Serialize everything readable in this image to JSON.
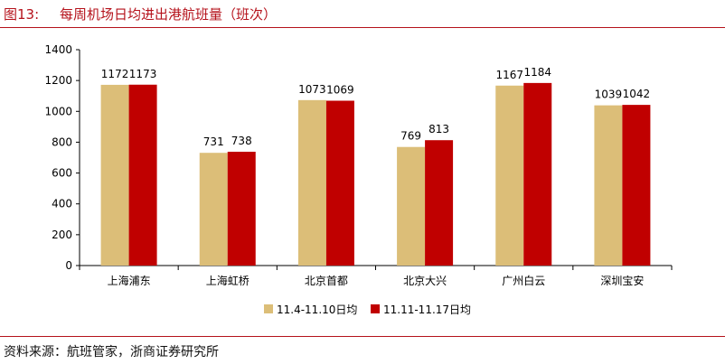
{
  "header": {
    "figure_label": "图13:",
    "title": "每周机场日均进出港航班量（班次）"
  },
  "footer": {
    "source": "资料来源：航班管家，浙商证券研究所"
  },
  "colors": {
    "accent": "#b5121b",
    "series_1": "#dcbe78",
    "series_2": "#c00000"
  },
  "chart_data": {
    "type": "bar",
    "title": "",
    "xlabel": "",
    "ylabel": "",
    "ylim": [
      0,
      1400
    ],
    "yticks": [
      0,
      200,
      400,
      600,
      800,
      1000,
      1200,
      1400
    ],
    "categories": [
      "上海浦东",
      "上海虹桥",
      "北京首都",
      "北京大兴",
      "广州白云",
      "深圳宝安"
    ],
    "series": [
      {
        "name": "11.4-11.10日均",
        "values": [
          1172,
          731,
          1073,
          769,
          1167,
          1039
        ]
      },
      {
        "name": "11.11-11.17日均",
        "values": [
          1173,
          738,
          1069,
          813,
          1184,
          1042
        ]
      }
    ],
    "data_labels": true,
    "grid": false,
    "legend_position": "bottom-center"
  }
}
